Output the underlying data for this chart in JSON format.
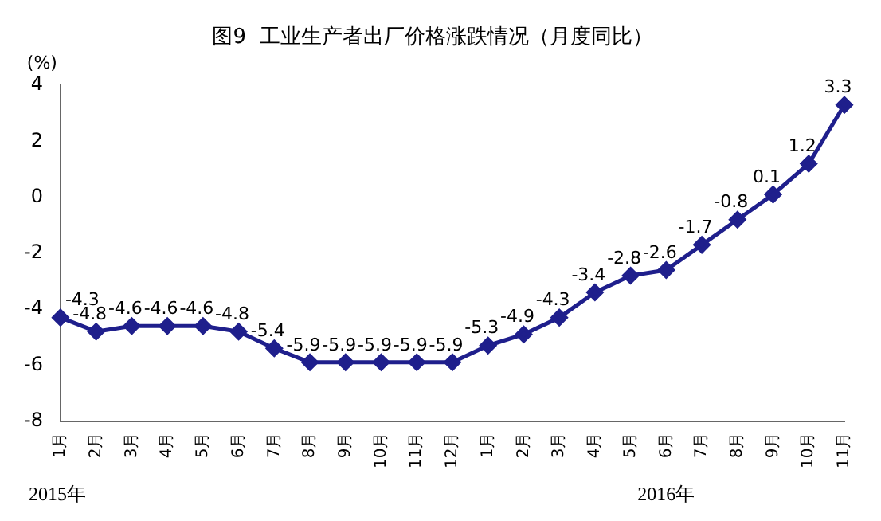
{
  "chart_data": {
    "type": "line",
    "title": "图9  工业生产者出厂价格涨跌情况（月度同比）",
    "ylabel": "(%)",
    "categories": [
      "1月",
      "2月",
      "3月",
      "4月",
      "5月",
      "6月",
      "7月",
      "8月",
      "9月",
      "10月",
      "11月",
      "12月",
      "1月",
      "2月",
      "3月",
      "4月",
      "5月",
      "6月",
      "7月",
      "8月",
      "9月",
      "10月",
      "11月"
    ],
    "series": [
      {
        "color": "#1f1f8c",
        "values": [
          -4.3,
          -4.8,
          -4.6,
          -4.6,
          -4.6,
          -4.8,
          -5.4,
          -5.9,
          -5.9,
          -5.9,
          -5.9,
          -5.9,
          -5.3,
          -4.9,
          -4.3,
          -3.4,
          -2.8,
          -2.6,
          -1.7,
          -0.8,
          0.1,
          1.2,
          3.3
        ]
      }
    ],
    "ylim": [
      -8,
      4
    ],
    "yticks": [
      -8,
      -6,
      -4,
      -2,
      0,
      2,
      4
    ],
    "grid": false,
    "legend": false,
    "marker": "diamond",
    "line_style": "solid",
    "data_labels": true,
    "annotations": [
      "2015年",
      "2016年"
    ]
  }
}
